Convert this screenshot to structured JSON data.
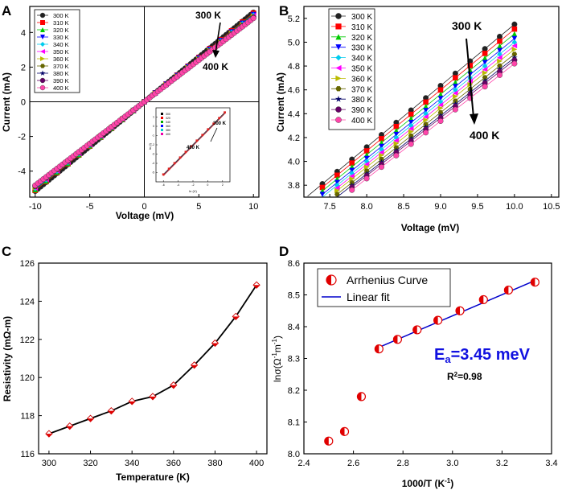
{
  "chart_data": [
    {
      "panel": "A",
      "type": "line",
      "title": "",
      "xlabel": "Voltage (mV)",
      "ylabel": "Current (mA)",
      "xlim": [
        -10.5,
        10.5
      ],
      "ylim": [
        -5.5,
        5.5
      ],
      "xticks": [
        -10,
        -5,
        0,
        5,
        10
      ],
      "yticks": [
        -4,
        -2,
        0,
        2,
        4
      ],
      "x_range": [
        -10,
        10
      ],
      "series": [
        {
          "name": "300 K",
          "color": "#222222",
          "marker": "circle",
          "slope": 0.515
        },
        {
          "name": "310 K",
          "color": "#ff0000",
          "marker": "square",
          "slope": 0.511
        },
        {
          "name": "320 K",
          "color": "#00cc00",
          "marker": "triangle-up",
          "slope": 0.507
        },
        {
          "name": "330 K",
          "color": "#0000ff",
          "marker": "triangle-down",
          "slope": 0.503
        },
        {
          "name": "340 K",
          "color": "#00ccee",
          "marker": "diamond",
          "slope": 0.5
        },
        {
          "name": "350 K",
          "color": "#ff00ff",
          "marker": "triangle-left",
          "slope": 0.497
        },
        {
          "name": "360 K",
          "color": "#bbbb00",
          "marker": "triangle-right",
          "slope": 0.494
        },
        {
          "name": "370 K",
          "color": "#666600",
          "marker": "hexagon",
          "slope": 0.49
        },
        {
          "name": "380 K",
          "color": "#000066",
          "marker": "star",
          "slope": 0.487
        },
        {
          "name": "390 K",
          "color": "#660066",
          "marker": "circle",
          "slope": 0.485
        },
        {
          "name": "400 K",
          "color": "#ff44aa",
          "marker": "circle",
          "slope": 0.482
        }
      ],
      "annotations": [
        "300 K",
        "400 K"
      ],
      "inset": {
        "xlabel": "ln (V)",
        "ylabel": "ln (I)",
        "xlim": [
          -7,
          3
        ],
        "ylim": [
          -6,
          2
        ],
        "xticks": [
          -6,
          -4,
          -2,
          0,
          2
        ],
        "yticks": [
          -5,
          -4,
          -3,
          -2,
          -1,
          0,
          1
        ],
        "legend": [
          "300",
          "320",
          "340",
          "360",
          "380",
          "400"
        ],
        "annotations": [
          "300 K",
          "400 K"
        ],
        "line": [
          [
            -6,
            -5.2
          ],
          [
            2.3,
            1.5
          ]
        ]
      }
    },
    {
      "panel": "B",
      "type": "line",
      "xlabel": "Voltage (mV)",
      "ylabel": "Current (mA)",
      "xlim": [
        7.15,
        10.6
      ],
      "ylim": [
        3.7,
        5.3
      ],
      "xticks": [
        7.5,
        8.0,
        8.5,
        9.0,
        9.5,
        10.0,
        10.5
      ],
      "yticks": [
        3.8,
        4.0,
        4.2,
        4.4,
        4.6,
        4.8,
        5.0,
        5.2
      ],
      "x_points": [
        7.2,
        7.4,
        7.6,
        7.8,
        8.0,
        8.2,
        8.4,
        8.6,
        8.8,
        9.0,
        9.2,
        9.4,
        9.6,
        9.8,
        10.0
      ],
      "series": [
        {
          "name": "300 K",
          "color": "#222222",
          "marker": "circle",
          "slope": 0.515
        },
        {
          "name": "310 K",
          "color": "#ff0000",
          "marker": "square",
          "slope": 0.511
        },
        {
          "name": "320 K",
          "color": "#00cc00",
          "marker": "triangle-up",
          "slope": 0.507
        },
        {
          "name": "330 K",
          "color": "#0000ff",
          "marker": "triangle-down",
          "slope": 0.503
        },
        {
          "name": "340 K",
          "color": "#00ccee",
          "marker": "diamond",
          "slope": 0.5
        },
        {
          "name": "350 K",
          "color": "#ff00ff",
          "marker": "triangle-left",
          "slope": 0.497
        },
        {
          "name": "360 K",
          "color": "#bbbb00",
          "marker": "triangle-right",
          "slope": 0.494
        },
        {
          "name": "370 K",
          "color": "#666600",
          "marker": "hexagon",
          "slope": 0.49
        },
        {
          "name": "380 K",
          "color": "#000066",
          "marker": "star",
          "slope": 0.487
        },
        {
          "name": "390 K",
          "color": "#660066",
          "marker": "circle",
          "slope": 0.485
        },
        {
          "name": "400 K",
          "color": "#ff44aa",
          "marker": "circle",
          "slope": 0.482
        }
      ],
      "annotations": [
        "300 K",
        "400 K"
      ]
    },
    {
      "panel": "C",
      "type": "line",
      "xlabel": "Temperature (K)",
      "ylabel": "Resistivity (mΩ-m)",
      "xlim": [
        295,
        405
      ],
      "ylim": [
        116,
        126
      ],
      "xticks": [
        300,
        320,
        340,
        360,
        380,
        400
      ],
      "yticks": [
        116,
        118,
        120,
        122,
        124,
        126
      ],
      "x": [
        300,
        310,
        320,
        330,
        340,
        350,
        360,
        370,
        380,
        390,
        400
      ],
      "y": [
        117.05,
        117.45,
        117.85,
        118.25,
        118.75,
        119.0,
        119.6,
        120.65,
        121.8,
        123.2,
        124.85
      ]
    },
    {
      "panel": "D",
      "type": "scatter",
      "xlabel": "1000/T (K",
      "xlabel_sup": "-1",
      "xlabel_end": ")",
      "ylabel": "lnσ(Ω",
      "ylabel_sup1": "-1",
      "ylabel_mid": "m",
      "ylabel_sup2": "-1",
      "ylabel_end": ")",
      "xlim": [
        2.4,
        3.4
      ],
      "ylim": [
        8.0,
        8.6
      ],
      "xticks": [
        2.4,
        2.6,
        2.8,
        3.0,
        3.2,
        3.4
      ],
      "yticks": [
        8.0,
        8.1,
        8.2,
        8.3,
        8.4,
        8.5,
        8.6
      ],
      "x": [
        2.5,
        2.564,
        2.632,
        2.703,
        2.778,
        2.857,
        2.941,
        3.03,
        3.125,
        3.226,
        3.333
      ],
      "y": [
        8.04,
        8.07,
        8.18,
        8.33,
        8.36,
        8.39,
        8.42,
        8.45,
        8.485,
        8.515,
        8.54
      ],
      "fit_line": [
        [
          2.703,
          8.335
        ],
        [
          3.333,
          8.545
        ]
      ],
      "legend": [
        "Arrhenius Curve",
        "Linear fit"
      ],
      "ea_prefix": "E",
      "ea_sub": "a",
      "ea_value": "=3.45 meV",
      "r2_prefix": "R",
      "r2_sup": "2",
      "r2_value": "=0.98"
    }
  ],
  "panel_labels": [
    "A",
    "B",
    "C",
    "D"
  ]
}
